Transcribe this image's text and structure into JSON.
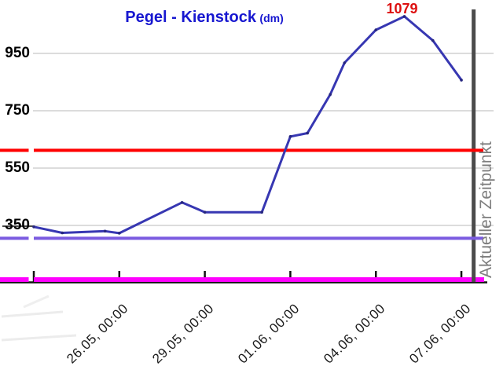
{
  "chart_data": {
    "type": "line",
    "title": "Pegel - Kienstock",
    "unit_label": "(dm)",
    "unit": "dm",
    "x_axis_note": "t = days since 23.05, 00:00; one data point per day plus intermediate kinks",
    "y_ticks": [
      950,
      750,
      550,
      350
    ],
    "ylim_displayed": [
      160,
      1130
    ],
    "grid": "horizontal-only",
    "x_ticks": [
      {
        "t": 0,
        "label": ""
      },
      {
        "t": 3,
        "label": "26.05, 00:00"
      },
      {
        "t": 6,
        "label": "29.05, 00:00"
      },
      {
        "t": 9,
        "label": "01.06, 00:00"
      },
      {
        "t": 12,
        "label": "04.06, 00:00"
      },
      {
        "t": 15,
        "label": "07.06, 00:00"
      }
    ],
    "series": [
      {
        "name": "Pegel Kienstock (dm)",
        "color": "#3737B2",
        "points_t_days_value": [
          [
            0,
            345
          ],
          [
            1,
            324
          ],
          [
            2.5,
            330
          ],
          [
            3,
            323
          ],
          [
            5.2,
            430
          ],
          [
            6,
            396
          ],
          [
            8,
            396
          ],
          [
            9,
            660
          ],
          [
            9.6,
            672
          ],
          [
            10.4,
            807
          ],
          [
            10.9,
            917
          ],
          [
            12,
            1032
          ],
          [
            13,
            1079
          ],
          [
            14,
            995
          ],
          [
            15,
            857
          ]
        ]
      }
    ],
    "annotations": [
      {
        "text": "1079",
        "t": 13,
        "value": 1079,
        "color": "#DD1010"
      }
    ],
    "reference_lines": [
      {
        "color": "#FF0000",
        "value": 612,
        "label": ""
      },
      {
        "color": "#7B5BE0",
        "value": 305,
        "label": ""
      },
      {
        "color": "#FF00FF",
        "value": 161,
        "label": ""
      }
    ],
    "vertical_marker": {
      "label": "Aktueller Zeitpunkt",
      "t": 15.43,
      "color": "#4B4B4B"
    },
    "colors": {
      "title_blue": "#1717D0",
      "series_blue": "#3737B2",
      "annotation_red": "#DD1010",
      "reference_red": "#FF0000",
      "reference_violet": "#7B5BE0",
      "reference_magenta": "#FF00FF",
      "current_time_gray": "#4B4B4B",
      "current_time_label_gray": "#7E7E7E",
      "gridline_gray": "#DCDCDC",
      "axis_black": "#111111"
    }
  }
}
